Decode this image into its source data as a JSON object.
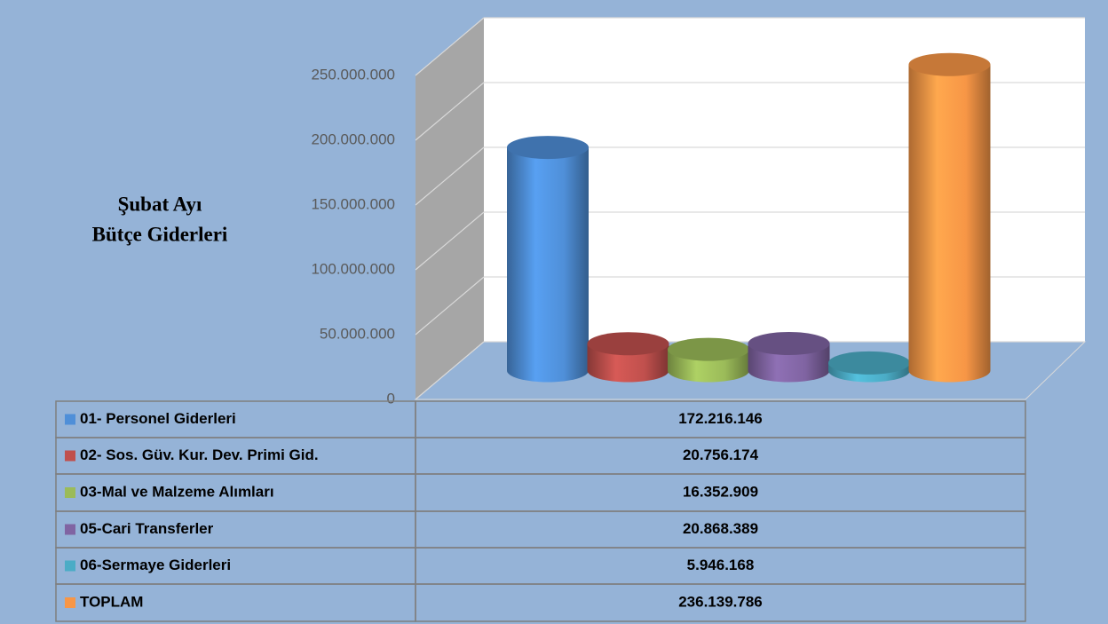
{
  "chart_data": {
    "type": "bar3d",
    "title": [
      "Şubat Ayı",
      "Bütçe Giderleri"
    ],
    "categories": [
      "01- Personel Giderleri",
      "02- Sos. Güv. Kur. Dev. Primi Gid.",
      "03-Mal ve Malzeme Alımları",
      "05-Cari Transferler",
      "06-Sermaye Giderleri",
      "TOPLAM"
    ],
    "values": [
      172216146,
      20756174,
      16352909,
      20868389,
      5946168,
      236139786
    ],
    "value_labels": [
      "172.216.146",
      "20.756.174",
      "16.352.909",
      "20.868.389",
      "5.946.168",
      "236.139.786"
    ],
    "colors": [
      "#4f8fd8",
      "#c0504d",
      "#9bbb59",
      "#8064a2",
      "#4bacc6",
      "#f79646"
    ],
    "ylim": [
      0,
      250000000
    ],
    "yticks": [
      0,
      {
        "value": 50000000,
        "label": "50.000.000"
      },
      {
        "value": 100000000,
        "label": "100.000.000"
      },
      {
        "value": 150000000,
        "label": "150.000.000"
      },
      {
        "value": 200000000,
        "label": "200.000.000"
      },
      {
        "value": 250000000,
        "label": "250.000.000"
      }
    ],
    "grid": true
  }
}
